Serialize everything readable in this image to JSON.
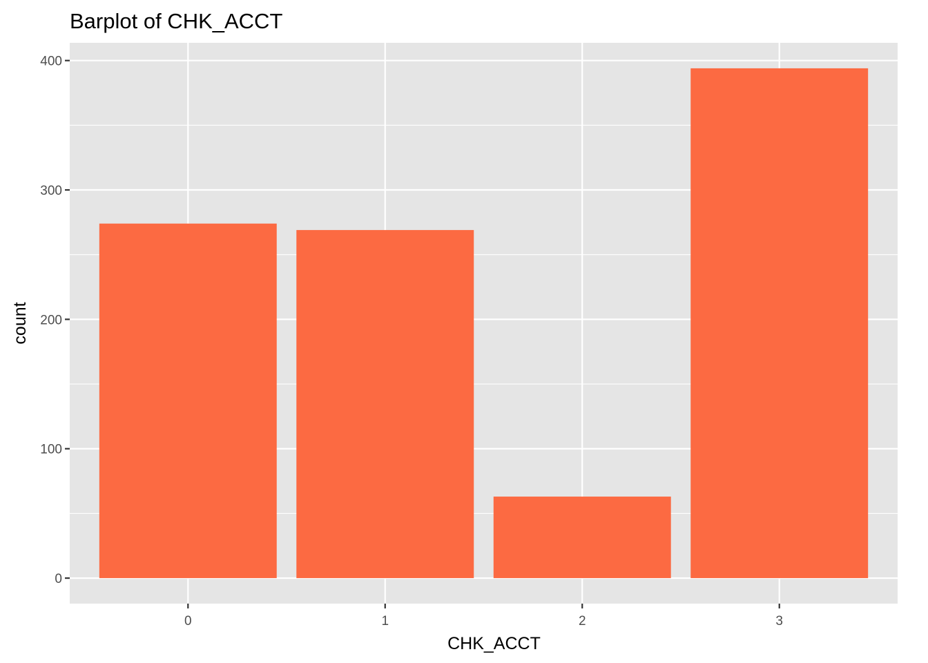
{
  "chart_data": {
    "type": "bar",
    "title": "Barplot of CHK_ACCT",
    "xlabel": "CHK_ACCT",
    "ylabel": "count",
    "categories": [
      "0",
      "1",
      "2",
      "3"
    ],
    "values": [
      274,
      269,
      63,
      394
    ],
    "yticks": [
      0,
      100,
      200,
      300,
      400
    ],
    "ylim": [
      -19.7,
      413.7
    ],
    "grid": true,
    "legend": "none",
    "colors": {
      "bar": "#fc6a42",
      "panel": "#e5e5e5",
      "grid": "#ffffff",
      "tick": "#333333"
    }
  }
}
